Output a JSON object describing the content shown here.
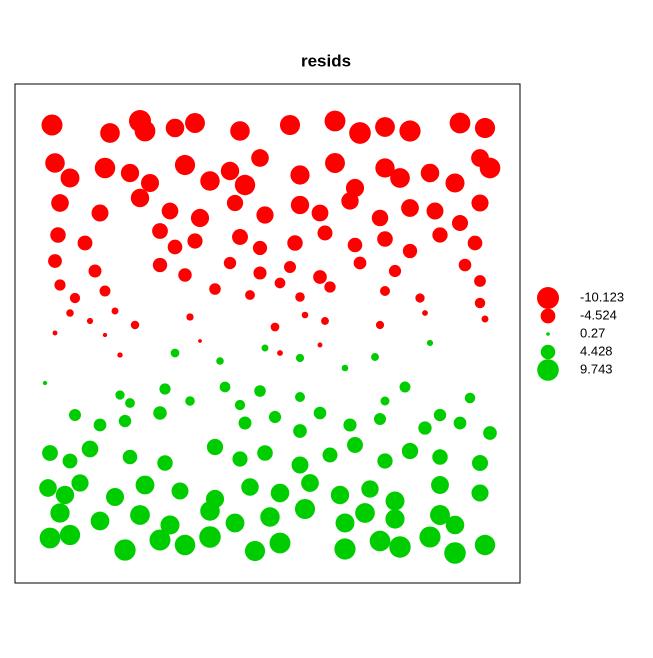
{
  "chart_data": {
    "type": "bubble",
    "title": "resids",
    "xlim": [
      0,
      505
    ],
    "ylim": [
      0,
      499
    ],
    "neg_color": "#ff0000",
    "pos_color": "#00cd00",
    "x": [
      37,
      95,
      125,
      130,
      160,
      180,
      225,
      275,
      320,
      345,
      370,
      395,
      445,
      470,
      40,
      55,
      90,
      115,
      135,
      170,
      195,
      215,
      230,
      245,
      285,
      320,
      340,
      370,
      385,
      415,
      440,
      465,
      475,
      45,
      85,
      125,
      155,
      185,
      220,
      250,
      285,
      305,
      335,
      365,
      395,
      420,
      445,
      465,
      43,
      70,
      145,
      160,
      180,
      225,
      245,
      280,
      310,
      340,
      370,
      395,
      425,
      460,
      40,
      80,
      145,
      170,
      215,
      245,
      275,
      305,
      345,
      380,
      450,
      465,
      45,
      60,
      90,
      200,
      235,
      265,
      285,
      315,
      370,
      405,
      465,
      55,
      75,
      100,
      120,
      175,
      260,
      290,
      310,
      365,
      410,
      470,
      40,
      90,
      105,
      185,
      265,
      305,
      30,
      160,
      205,
      250,
      285,
      330,
      360,
      415,
      105,
      115,
      150,
      175,
      210,
      225,
      245,
      285,
      370,
      390,
      455,
      60,
      85,
      110,
      145,
      230,
      260,
      285,
      305,
      335,
      365,
      410,
      425,
      445,
      475,
      35,
      55,
      75,
      115,
      150,
      200,
      225,
      250,
      285,
      315,
      340,
      370,
      395,
      425,
      465,
      33,
      50,
      65,
      100,
      130,
      165,
      200,
      235,
      265,
      295,
      325,
      355,
      380,
      425,
      465,
      45,
      85,
      125,
      155,
      195,
      220,
      255,
      290,
      330,
      350,
      380,
      425,
      440,
      35,
      55,
      110,
      145,
      170,
      195,
      240,
      265,
      330,
      365,
      385,
      415,
      440,
      470
    ],
    "y": [
      458,
      450,
      462,
      452,
      455,
      460,
      452,
      458,
      462,
      450,
      456,
      452,
      460,
      455,
      420,
      405,
      415,
      410,
      400,
      418,
      402,
      412,
      398,
      425,
      408,
      420,
      395,
      415,
      405,
      410,
      400,
      425,
      415,
      380,
      370,
      385,
      372,
      365,
      380,
      368,
      378,
      370,
      382,
      365,
      375,
      372,
      360,
      380,
      348,
      340,
      352,
      336,
      342,
      346,
      335,
      340,
      350,
      338,
      344,
      332,
      348,
      340,
      322,
      312,
      318,
      308,
      320,
      310,
      316,
      306,
      320,
      312,
      318,
      302,
      298,
      285,
      292,
      294,
      288,
      300,
      286,
      296,
      292,
      285,
      280,
      270,
      262,
      272,
      258,
      266,
      256,
      268,
      262,
      258,
      270,
      264,
      250,
      248,
      228,
      242,
      230,
      238,
      200,
      230,
      222,
      235,
      225,
      215,
      226,
      240,
      188,
      180,
      194,
      182,
      196,
      178,
      192,
      186,
      182,
      196,
      185,
      168,
      158,
      162,
      170,
      160,
      166,
      152,
      170,
      158,
      164,
      155,
      168,
      160,
      150,
      130,
      122,
      134,
      126,
      120,
      136,
      124,
      130,
      118,
      128,
      138,
      122,
      132,
      126,
      120,
      95,
      88,
      100,
      86,
      98,
      92,
      84,
      96,
      90,
      100,
      88,
      94,
      82,
      98,
      90,
      70,
      62,
      68,
      58,
      72,
      60,
      66,
      74,
      60,
      70,
      64,
      68,
      58,
      45,
      48,
      33,
      43,
      38,
      46,
      32,
      40,
      34,
      42,
      36,
      46,
      30,
      38
    ],
    "values": [
      -9.2,
      -8.1,
      -10.1,
      -9.0,
      -7.2,
      -8.3,
      -8.0,
      -8.4,
      -9.1,
      -9.8,
      -8.2,
      -9.4,
      -9.0,
      -8.5,
      -8.0,
      -7.5,
      -8.8,
      -7.0,
      -6.8,
      -8.5,
      -7.9,
      -7.1,
      -8.7,
      -6.5,
      -7.7,
      -8.3,
      -6.9,
      -7.8,
      -8.1,
      -7.2,
      -7.6,
      -6.6,
      -8.9,
      -6.5,
      -6.0,
      -7.1,
      -5.8,
      -6.9,
      -5.5,
      -6.2,
      -7.0,
      -5.9,
      -6.3,
      -5.7,
      -6.6,
      -6.0,
      -5.4,
      -6.1,
      -5.0,
      -4.6,
      -5.2,
      -4.5,
      -4.8,
      -5.3,
      -4.2,
      -5.0,
      -4.7,
      -4.4,
      -5.1,
      -4.3,
      -4.9,
      -4.5,
      -4.0,
      -3.5,
      -4.3,
      -3.8,
      -3.2,
      -3.6,
      -3.0,
      -3.9,
      -3.4,
      -3.1,
      -3.3,
      -2.9,
      -2.6,
      -2.2,
      -2.5,
      -2.8,
      -2.0,
      -2.4,
      -1.9,
      -2.7,
      -2.1,
      -1.8,
      -2.3,
      -1.2,
      -0.8,
      -1.0,
      -1.5,
      -1.1,
      -1.6,
      -0.9,
      -1.3,
      -1.4,
      -0.7,
      -1.0,
      -0.5,
      -0.4,
      -0.6,
      -0.3,
      -0.7,
      -0.5,
      0.4,
      1.6,
      1.2,
      1.0,
      1.4,
      0.9,
      1.3,
      0.8,
      1.8,
      2.0,
      2.6,
      1.9,
      2.4,
      2.2,
      2.8,
      2.1,
      1.7,
      2.5,
      2.3,
      3.0,
      3.4,
      3.2,
      3.8,
      3.5,
      3.1,
      3.9,
      3.3,
      3.6,
      3.0,
      3.7,
      3.2,
      3.4,
      3.9,
      5.2,
      4.6,
      5.8,
      4.4,
      5.0,
      5.5,
      4.8,
      5.1,
      6.0,
      4.7,
      5.3,
      4.9,
      5.6,
      5.0,
      5.4,
      6.5,
      7.0,
      6.2,
      6.8,
      7.4,
      6.0,
      6.9,
      6.4,
      7.2,
      6.6,
      7.1,
      6.3,
      7.5,
      6.7,
      6.1,
      7.8,
      7.3,
      8.2,
      7.6,
      8.0,
      7.4,
      7.9,
      8.4,
      7.5,
      8.1,
      7.7,
      8.3,
      7.2,
      9.0,
      8.6,
      9.5,
      9.2,
      8.8,
      9.7,
      8.5,
      9.1,
      9.4,
      8.9,
      9.6,
      9.3,
      9.74,
      8.7
    ],
    "legend": [
      -10.123,
      -4.524,
      0.27,
      4.428,
      9.743
    ]
  }
}
